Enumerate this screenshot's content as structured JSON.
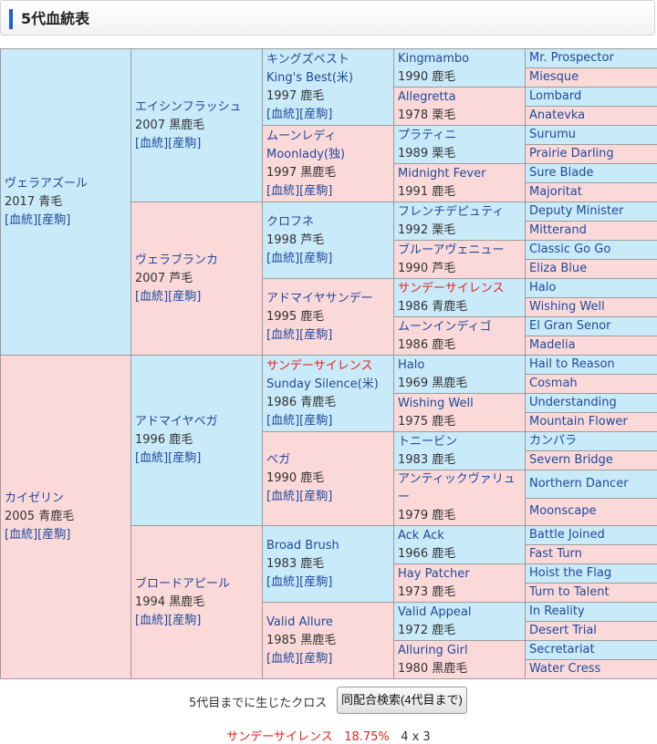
{
  "header": {
    "title": "5代血統表"
  },
  "links": {
    "ketto": "[血統]",
    "sanku": "[産駒]"
  },
  "g1": [
    {
      "name": "ヴェラアズール",
      "info": "2017 青毛"
    },
    {
      "name": "カイゼリン",
      "info": "2005 青鹿毛"
    }
  ],
  "g2": [
    {
      "name": "エイシンフラッシュ",
      "info": "2007 黒鹿毛"
    },
    {
      "name": "ヴェラブランカ",
      "info": "2007 芦毛"
    },
    {
      "name": "アドマイヤベガ",
      "info": "1996 鹿毛"
    },
    {
      "name": "ブロードアピール",
      "info": "1994 黒鹿毛"
    }
  ],
  "g3": [
    {
      "name": "キングズベスト",
      "alt": "King's Best(米)",
      "info": "1997 鹿毛"
    },
    {
      "name": "ムーンレディ",
      "alt": "Moonlady(独)",
      "info": "1997 黒鹿毛"
    },
    {
      "name": "クロフネ",
      "info": "1998 芦毛"
    },
    {
      "name": "アドマイヤサンデー",
      "info": "1995 鹿毛"
    },
    {
      "name": "サンデーサイレンス",
      "alt": "Sunday Silence(米)",
      "info": "1986 青鹿毛"
    },
    {
      "name": "ベガ",
      "info": "1990 鹿毛"
    },
    {
      "name": "Broad Brush",
      "info": "1983 鹿毛"
    },
    {
      "name": "Valid Allure",
      "info": "1985 黒鹿毛"
    }
  ],
  "g4": [
    {
      "name": "Kingmambo",
      "info": "1990 鹿毛"
    },
    {
      "name": "Allegretta",
      "info": "1978 栗毛"
    },
    {
      "name": "プラティニ",
      "info": "1989 栗毛"
    },
    {
      "name": "Midnight Fever",
      "info": "1991 鹿毛"
    },
    {
      "name": "フレンチデピュティ",
      "info": "1992 栗毛"
    },
    {
      "name": "ブルーアヴェニュー",
      "info": "1990 芦毛"
    },
    {
      "name": "サンデーサイレンス",
      "info": "1986 青鹿毛"
    },
    {
      "name": "ムーンインディゴ",
      "info": "1986 鹿毛"
    },
    {
      "name": "Halo",
      "info": "1969 黒鹿毛"
    },
    {
      "name": "Wishing Well",
      "info": "1975 鹿毛"
    },
    {
      "name": "トニービン",
      "info": "1983 鹿毛"
    },
    {
      "name": "アンティックヴァリュー",
      "info": "1979 鹿毛"
    },
    {
      "name": "Ack Ack",
      "info": "1966 鹿毛"
    },
    {
      "name": "Hay Patcher",
      "info": "1973 鹿毛"
    },
    {
      "name": "Valid Appeal",
      "info": "1972 鹿毛"
    },
    {
      "name": "Alluring Girl",
      "info": "1980 黒鹿毛"
    }
  ],
  "g5": [
    "Mr. Prospector",
    "Miesque",
    "Lombard",
    "Anatevka",
    "Surumu",
    "Prairie Darling",
    "Sure Blade",
    "Majoritat",
    "Deputy Minister",
    "Mitterand",
    "Classic Go Go",
    "Eliza Blue",
    "Halo",
    "Wishing Well",
    "El Gran Senor",
    "Madelia",
    "Hail to Reason",
    "Cosmah",
    "Understanding",
    "Mountain Flower",
    "カンパラ",
    "Severn Bridge",
    "Northern Dancer",
    "Moonscape",
    "Battle Joined",
    "Fast Turn",
    "Hoist the Flag",
    "Turn to Talent",
    "In Reality",
    "Desert Trial",
    "Secretariat",
    "Water Cress"
  ],
  "cross": {
    "label": "5代目までに生じたクロス",
    "button": "同配合検索(4代目まで)",
    "result": {
      "name": "サンデーサイレンス",
      "percent": "18.75%",
      "pattern": "4 x 3"
    }
  }
}
